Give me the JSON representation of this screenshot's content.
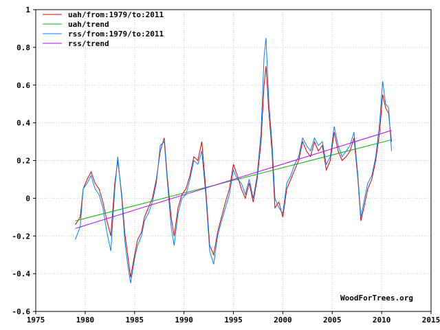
{
  "credit": "WoodForTrees.org",
  "chart_data": {
    "type": "line",
    "title": "",
    "xlabel": "",
    "ylabel": "",
    "xlim": [
      1975,
      2015
    ],
    "ylim": [
      -0.6,
      1
    ],
    "x_ticks": [
      "1975",
      "1980",
      "1985",
      "1990",
      "1995",
      "2000",
      "2005",
      "2010",
      "2015"
    ],
    "y_ticks": [
      "-0.6",
      "-0.4",
      "-0.2",
      "0",
      "0.2",
      "0.4",
      "0.6",
      "0.8",
      "1"
    ],
    "grid": true,
    "legend_position": "top-left",
    "series": [
      {
        "name": "uah/from:1979/to:2011",
        "color": "#d40000",
        "kind": "line",
        "points": [
          [
            1979.0,
            -0.14
          ],
          [
            1979.5,
            -0.1
          ],
          [
            1979.8,
            0.05
          ],
          [
            1980.2,
            0.1
          ],
          [
            1980.6,
            0.14
          ],
          [
            1981.0,
            0.08
          ],
          [
            1981.4,
            0.05
          ],
          [
            1981.8,
            -0.02
          ],
          [
            1982.2,
            -0.12
          ],
          [
            1982.6,
            -0.2
          ],
          [
            1983.0,
            0.08
          ],
          [
            1983.3,
            0.2
          ],
          [
            1983.7,
            0.02
          ],
          [
            1984.0,
            -0.18
          ],
          [
            1984.3,
            -0.3
          ],
          [
            1984.6,
            -0.42
          ],
          [
            1985.0,
            -0.3
          ],
          [
            1985.3,
            -0.22
          ],
          [
            1985.7,
            -0.18
          ],
          [
            1986.0,
            -0.1
          ],
          [
            1986.4,
            -0.05
          ],
          [
            1986.8,
            0.0
          ],
          [
            1987.2,
            0.1
          ],
          [
            1987.6,
            0.25
          ],
          [
            1988.0,
            0.32
          ],
          [
            1988.3,
            0.12
          ],
          [
            1988.7,
            -0.1
          ],
          [
            1989.0,
            -0.2
          ],
          [
            1989.4,
            -0.05
          ],
          [
            1989.8,
            0.02
          ],
          [
            1990.2,
            0.05
          ],
          [
            1990.6,
            0.12
          ],
          [
            1991.0,
            0.22
          ],
          [
            1991.4,
            0.2
          ],
          [
            1991.8,
            0.3
          ],
          [
            1992.2,
            0.05
          ],
          [
            1992.6,
            -0.25
          ],
          [
            1993.0,
            -0.3
          ],
          [
            1993.4,
            -0.18
          ],
          [
            1993.8,
            -0.1
          ],
          [
            1994.2,
            -0.02
          ],
          [
            1994.6,
            0.05
          ],
          [
            1995.0,
            0.18
          ],
          [
            1995.4,
            0.12
          ],
          [
            1995.8,
            0.05
          ],
          [
            1996.2,
            0.0
          ],
          [
            1996.6,
            0.08
          ],
          [
            1997.0,
            -0.02
          ],
          [
            1997.4,
            0.1
          ],
          [
            1997.8,
            0.3
          ],
          [
            1998.1,
            0.6
          ],
          [
            1998.3,
            0.7
          ],
          [
            1998.6,
            0.45
          ],
          [
            1998.9,
            0.25
          ],
          [
            1999.2,
            -0.05
          ],
          [
            1999.6,
            -0.02
          ],
          [
            2000.0,
            -0.1
          ],
          [
            2000.4,
            0.05
          ],
          [
            2000.8,
            0.1
          ],
          [
            2001.2,
            0.15
          ],
          [
            2001.6,
            0.2
          ],
          [
            2002.0,
            0.3
          ],
          [
            2002.4,
            0.25
          ],
          [
            2002.8,
            0.22
          ],
          [
            2003.2,
            0.3
          ],
          [
            2003.6,
            0.25
          ],
          [
            2004.0,
            0.28
          ],
          [
            2004.4,
            0.15
          ],
          [
            2004.8,
            0.2
          ],
          [
            2005.2,
            0.35
          ],
          [
            2005.6,
            0.25
          ],
          [
            2006.0,
            0.2
          ],
          [
            2006.4,
            0.22
          ],
          [
            2006.8,
            0.25
          ],
          [
            2007.2,
            0.32
          ],
          [
            2007.6,
            0.1
          ],
          [
            2007.9,
            -0.12
          ],
          [
            2008.2,
            -0.05
          ],
          [
            2008.6,
            0.05
          ],
          [
            2009.0,
            0.1
          ],
          [
            2009.4,
            0.2
          ],
          [
            2009.8,
            0.35
          ],
          [
            2010.1,
            0.55
          ],
          [
            2010.4,
            0.48
          ],
          [
            2010.7,
            0.45
          ],
          [
            2011.0,
            0.3
          ]
        ]
      },
      {
        "name": "uah/trend",
        "color": "#00b400",
        "kind": "line",
        "points": [
          [
            1979.0,
            -0.12
          ],
          [
            2011.0,
            0.31
          ]
        ]
      },
      {
        "name": "rss/from:1979/to:2011",
        "color": "#0080ff",
        "kind": "line",
        "points": [
          [
            1979.0,
            -0.22
          ],
          [
            1979.5,
            -0.15
          ],
          [
            1979.8,
            0.05
          ],
          [
            1980.2,
            0.08
          ],
          [
            1980.6,
            0.12
          ],
          [
            1981.0,
            0.05
          ],
          [
            1981.4,
            0.02
          ],
          [
            1981.8,
            -0.05
          ],
          [
            1982.2,
            -0.18
          ],
          [
            1982.6,
            -0.28
          ],
          [
            1983.0,
            0.05
          ],
          [
            1983.3,
            0.22
          ],
          [
            1983.7,
            0.0
          ],
          [
            1984.0,
            -0.22
          ],
          [
            1984.3,
            -0.35
          ],
          [
            1984.6,
            -0.45
          ],
          [
            1985.0,
            -0.32
          ],
          [
            1985.3,
            -0.25
          ],
          [
            1985.7,
            -0.2
          ],
          [
            1986.0,
            -0.12
          ],
          [
            1986.4,
            -0.08
          ],
          [
            1986.8,
            -0.02
          ],
          [
            1987.2,
            0.08
          ],
          [
            1987.6,
            0.28
          ],
          [
            1988.0,
            0.3
          ],
          [
            1988.3,
            0.1
          ],
          [
            1988.7,
            -0.15
          ],
          [
            1989.0,
            -0.25
          ],
          [
            1989.4,
            -0.08
          ],
          [
            1989.8,
            0.0
          ],
          [
            1990.2,
            0.02
          ],
          [
            1990.6,
            0.1
          ],
          [
            1991.0,
            0.2
          ],
          [
            1991.4,
            0.18
          ],
          [
            1991.8,
            0.25
          ],
          [
            1992.2,
            0.02
          ],
          [
            1992.6,
            -0.28
          ],
          [
            1993.0,
            -0.35
          ],
          [
            1993.4,
            -0.2
          ],
          [
            1993.8,
            -0.12
          ],
          [
            1994.2,
            -0.05
          ],
          [
            1994.6,
            0.02
          ],
          [
            1995.0,
            0.15
          ],
          [
            1995.4,
            0.1
          ],
          [
            1995.8,
            0.08
          ],
          [
            1996.2,
            0.02
          ],
          [
            1996.6,
            0.1
          ],
          [
            1997.0,
            0.0
          ],
          [
            1997.4,
            0.12
          ],
          [
            1997.8,
            0.35
          ],
          [
            1998.1,
            0.75
          ],
          [
            1998.3,
            0.85
          ],
          [
            1998.6,
            0.5
          ],
          [
            1998.9,
            0.3
          ],
          [
            1999.2,
            0.0
          ],
          [
            1999.6,
            -0.05
          ],
          [
            2000.0,
            -0.08
          ],
          [
            2000.4,
            0.08
          ],
          [
            2000.8,
            0.12
          ],
          [
            2001.2,
            0.18
          ],
          [
            2001.6,
            0.22
          ],
          [
            2002.0,
            0.32
          ],
          [
            2002.4,
            0.28
          ],
          [
            2002.8,
            0.25
          ],
          [
            2003.2,
            0.32
          ],
          [
            2003.6,
            0.28
          ],
          [
            2004.0,
            0.3
          ],
          [
            2004.4,
            0.18
          ],
          [
            2004.8,
            0.22
          ],
          [
            2005.2,
            0.38
          ],
          [
            2005.6,
            0.28
          ],
          [
            2006.0,
            0.22
          ],
          [
            2006.4,
            0.25
          ],
          [
            2006.8,
            0.28
          ],
          [
            2007.2,
            0.35
          ],
          [
            2007.6,
            0.12
          ],
          [
            2007.9,
            -0.1
          ],
          [
            2008.2,
            -0.02
          ],
          [
            2008.6,
            0.08
          ],
          [
            2009.0,
            0.12
          ],
          [
            2009.4,
            0.22
          ],
          [
            2009.8,
            0.4
          ],
          [
            2010.1,
            0.62
          ],
          [
            2010.4,
            0.5
          ],
          [
            2010.7,
            0.48
          ],
          [
            2011.0,
            0.25
          ]
        ]
      },
      {
        "name": "rss/trend",
        "color": "#b400ff",
        "kind": "line",
        "points": [
          [
            1979.0,
            -0.16
          ],
          [
            2011.0,
            0.36
          ]
        ]
      }
    ]
  }
}
